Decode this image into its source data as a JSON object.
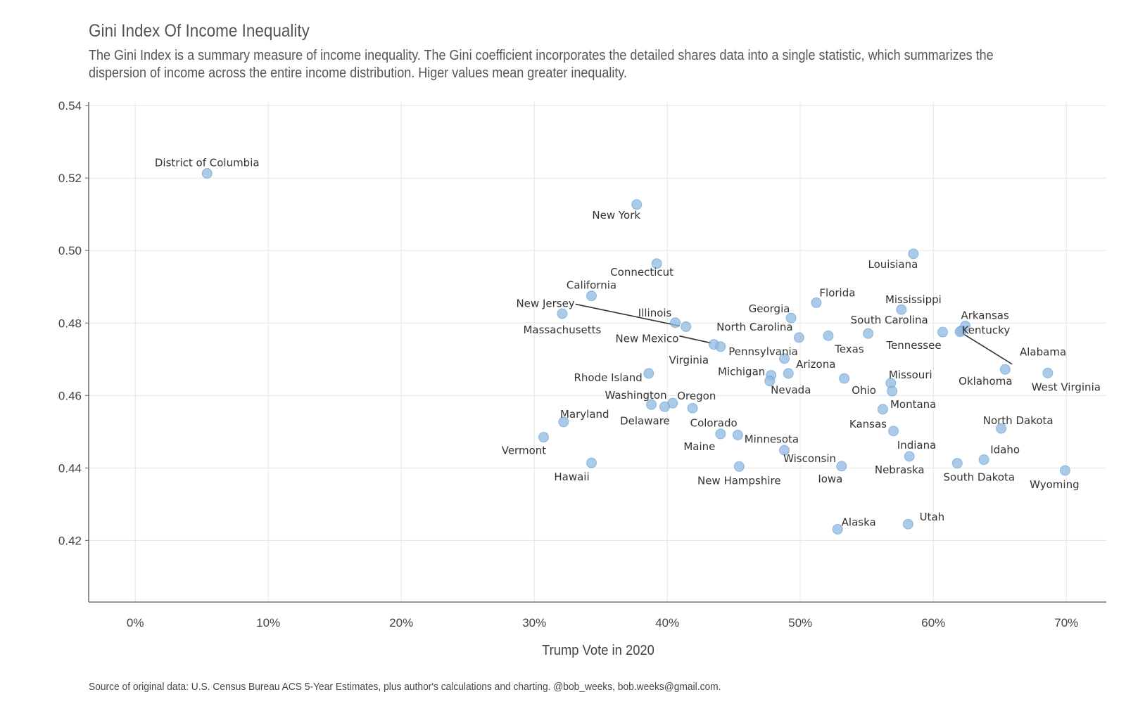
{
  "chart_data": {
    "type": "scatter",
    "title": "Gini Index Of Income Inequality",
    "subtitle": "The Gini Index is a summary measure of income inequality. The Gini coefficient incorporates the detailed shares data into a single statistic, which summarizes the dispersion of income across the entire income distribution. Higer values mean greater inequality.",
    "xlabel": "Trump Vote in 2020",
    "ylabel": "",
    "caption": "Source of original data: U.S. Census Bureau ACS 5-Year Estimates, plus author's calculations and charting. @bob_weeks, bob.weeks@gmail.com.",
    "xlim": [
      -3.5,
      73
    ],
    "ylim": [
      0.403,
      0.541
    ],
    "x_ticks": [
      0,
      10,
      20,
      30,
      40,
      50,
      60,
      70
    ],
    "x_tick_labels": [
      "0%",
      "10%",
      "20%",
      "30%",
      "40%",
      "50%",
      "60%",
      "70%"
    ],
    "y_ticks": [
      0.42,
      0.44,
      0.46,
      0.48,
      0.5,
      0.52,
      0.54
    ],
    "y_tick_labels": [
      "0.42",
      "0.44",
      "0.46",
      "0.48",
      "0.50",
      "0.52",
      "0.54"
    ],
    "grid": true,
    "point_color": "#8db8e0",
    "point_stroke": "#5f9bd3",
    "points": [
      {
        "label": "District of Columbia",
        "x": 5.4,
        "y": 0.5213
      },
      {
        "label": "New York",
        "x": 37.7,
        "y": 0.5127
      },
      {
        "label": "Connecticut",
        "x": 39.2,
        "y": 0.4964
      },
      {
        "label": "Louisiana",
        "x": 58.5,
        "y": 0.4991
      },
      {
        "label": "California",
        "x": 34.3,
        "y": 0.4875
      },
      {
        "label": "Florida",
        "x": 51.2,
        "y": 0.4856
      },
      {
        "label": "Mississippi",
        "x": 57.6,
        "y": 0.4837
      },
      {
        "label": "New Jersey",
        "x": 41.4,
        "y": 0.479
      },
      {
        "label": "Massachusetts",
        "x": 32.1,
        "y": 0.4826
      },
      {
        "label": "Illinois",
        "x": 40.6,
        "y": 0.4801
      },
      {
        "label": "Georgia",
        "x": 49.3,
        "y": 0.4814
      },
      {
        "label": "Arkansas",
        "x": 62.4,
        "y": 0.4792
      },
      {
        "label": "South Carolina",
        "x": 55.1,
        "y": 0.4771
      },
      {
        "label": "Tennessee",
        "x": 60.7,
        "y": 0.4775
      },
      {
        "label": "Kentucky",
        "x": 62.1,
        "y": 0.4778
      },
      {
        "label": "Alabama",
        "x": 62.0,
        "y": 0.4776
      },
      {
        "label": "North Carolina",
        "x": 49.9,
        "y": 0.476
      },
      {
        "label": "Texas",
        "x": 52.1,
        "y": 0.4765
      },
      {
        "label": "New Mexico",
        "x": 43.5,
        "y": 0.4741
      },
      {
        "label": "Virginia",
        "x": 44.0,
        "y": 0.4735
      },
      {
        "label": "Pennsylvania",
        "x": 48.8,
        "y": 0.4702
      },
      {
        "label": "Oklahoma",
        "x": 65.4,
        "y": 0.4672
      },
      {
        "label": "West Virginia",
        "x": 68.6,
        "y": 0.4662
      },
      {
        "label": "Rhode Island",
        "x": 38.6,
        "y": 0.4661
      },
      {
        "label": "Arizona",
        "x": 49.1,
        "y": 0.4661
      },
      {
        "label": "Michigan",
        "x": 47.8,
        "y": 0.4656
      },
      {
        "label": "Nevada",
        "x": 47.7,
        "y": 0.464
      },
      {
        "label": "Ohio",
        "x": 53.3,
        "y": 0.4647
      },
      {
        "label": "Missouri",
        "x": 56.8,
        "y": 0.4634
      },
      {
        "label": "Montana",
        "x": 56.9,
        "y": 0.4612
      },
      {
        "label": "Washington",
        "x": 38.8,
        "y": 0.4575
      },
      {
        "label": "Oregon",
        "x": 40.4,
        "y": 0.4579
      },
      {
        "label": "Delaware",
        "x": 39.8,
        "y": 0.4569
      },
      {
        "label": "Colorado",
        "x": 41.9,
        "y": 0.4565
      },
      {
        "label": "Kansas",
        "x": 56.2,
        "y": 0.4562
      },
      {
        "label": "Maryland",
        "x": 32.2,
        "y": 0.4527
      },
      {
        "label": "North Dakota",
        "x": 65.1,
        "y": 0.4509
      },
      {
        "label": "Indiana",
        "x": 57.0,
        "y": 0.4502
      },
      {
        "label": "Vermont",
        "x": 30.7,
        "y": 0.4485
      },
      {
        "label": "Maine",
        "x": 44.0,
        "y": 0.4494
      },
      {
        "label": "Minnesota",
        "x": 45.3,
        "y": 0.4491
      },
      {
        "label": "Wisconsin",
        "x": 48.8,
        "y": 0.4449
      },
      {
        "label": "Nebraska",
        "x": 58.2,
        "y": 0.4432
      },
      {
        "label": "Idaho",
        "x": 63.8,
        "y": 0.4423
      },
      {
        "label": "South Dakota",
        "x": 61.8,
        "y": 0.4413
      },
      {
        "label": "Hawaii",
        "x": 34.3,
        "y": 0.4414
      },
      {
        "label": "New Hampshire",
        "x": 45.4,
        "y": 0.4404
      },
      {
        "label": "Iowa",
        "x": 53.1,
        "y": 0.4405
      },
      {
        "label": "Wyoming",
        "x": 69.9,
        "y": 0.4393
      },
      {
        "label": "Alaska",
        "x": 52.8,
        "y": 0.4231
      },
      {
        "label": "Utah",
        "x": 58.1,
        "y": 0.4245
      }
    ]
  }
}
